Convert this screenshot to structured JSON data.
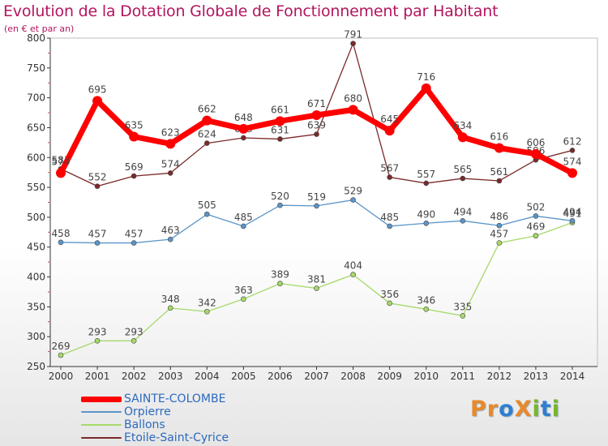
{
  "header": {
    "title": "Evolution de la Dotation Globale de Fonctionnement par Habitant",
    "subtitle": "(en € et par an)"
  },
  "logo": {
    "text": "ProXiti",
    "letter_colors": [
      "#e8892a",
      "#e8892a",
      "#2f7fd0",
      "#e8892a",
      "#79b52b",
      "#2f7fd0",
      "#79b52b"
    ]
  },
  "chart_data": {
    "type": "line",
    "title": "Evolution de la Dotation Globale de Fonctionnement par Habitant",
    "subtitle": "(en € et par an)",
    "x": [
      "2000",
      "2001",
      "2002",
      "2003",
      "2004",
      "2005",
      "2006",
      "2007",
      "2008",
      "2009",
      "2010",
      "2011",
      "2012",
      "2013",
      "2014"
    ],
    "ylim": [
      250,
      800
    ],
    "yticks": [
      250,
      300,
      350,
      400,
      450,
      500,
      550,
      600,
      650,
      700,
      750,
      800
    ],
    "grid": false,
    "legend_position": "bottom-left",
    "series": [
      {
        "name": "SAINTE-COLOMBE",
        "color": "#ff0000",
        "values": [
          574,
          695,
          635,
          623,
          662,
          648,
          661,
          671,
          680,
          645,
          716,
          634,
          616,
          606,
          574
        ]
      },
      {
        "name": "Orpierre",
        "color": "#5b95c9",
        "values": [
          458,
          457,
          457,
          463,
          505,
          485,
          520,
          519,
          529,
          485,
          490,
          494,
          486,
          502,
          494
        ]
      },
      {
        "name": "Ballons",
        "color": "#a6d96a",
        "values": [
          269,
          293,
          293,
          348,
          342,
          363,
          389,
          381,
          404,
          356,
          346,
          335,
          457,
          469,
          491
        ]
      },
      {
        "name": "Etoile-Saint-Cyrice",
        "color": "#7a2a2a",
        "values": [
          581,
          552,
          569,
          574,
          624,
          633,
          631,
          639,
          791,
          567,
          557,
          565,
          561,
          596,
          612
        ]
      }
    ]
  }
}
